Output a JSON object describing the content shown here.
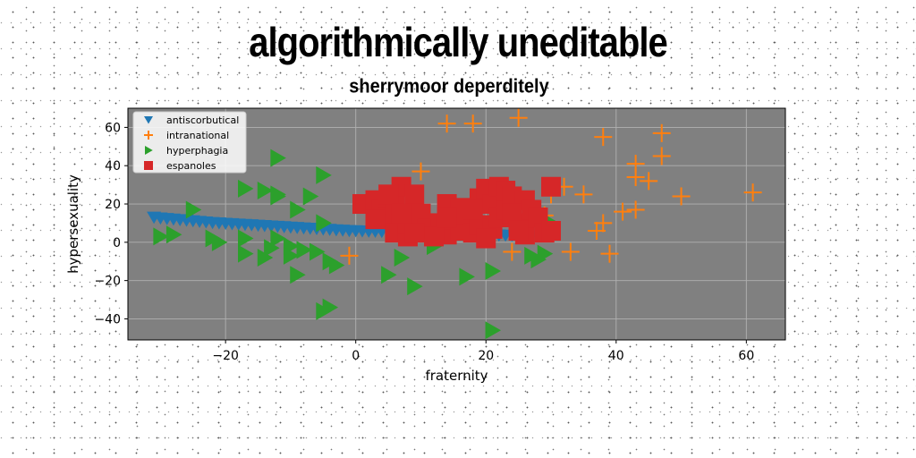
{
  "chart_data": {
    "type": "scatter",
    "title": "algorithmically uneditable",
    "subtitle": "sherrymoor deperditely",
    "xlabel": "fraternity",
    "ylabel": "hypersexuality",
    "xlim": [
      -35,
      66
    ],
    "ylim": [
      -51,
      70
    ],
    "xticks": [
      -20,
      0,
      20,
      40,
      60
    ],
    "yticks": [
      -40,
      -20,
      0,
      20,
      40,
      60
    ],
    "xtick_labels": [
      "−20",
      "0",
      "20",
      "40",
      "60"
    ],
    "ytick_labels": [
      "−40",
      "−20",
      "0",
      "20",
      "40",
      "60"
    ],
    "grid": true,
    "legend_position": "top-left",
    "background": "#808080",
    "series": [
      {
        "name": "antiscorbutical",
        "marker": "triangle-down",
        "color": "#1f77b4",
        "points": [
          [
            -31,
            13
          ],
          [
            -30,
            12.6
          ],
          [
            -29,
            12.3
          ],
          [
            -28,
            12
          ],
          [
            -27,
            11.7
          ],
          [
            -26,
            11.4
          ],
          [
            -25,
            11.1
          ],
          [
            -24,
            10.8
          ],
          [
            -23,
            10.5
          ],
          [
            -22,
            10.2
          ],
          [
            -21,
            10
          ],
          [
            -20,
            9.8
          ],
          [
            -19,
            9.6
          ],
          [
            -18,
            9.4
          ],
          [
            -17,
            9.2
          ],
          [
            -16,
            9
          ],
          [
            -15,
            8.8
          ],
          [
            -14,
            8.6
          ],
          [
            -13,
            8.4
          ],
          [
            -12,
            8.2
          ],
          [
            -11,
            8
          ],
          [
            -10,
            7.8
          ],
          [
            -9,
            7.6
          ],
          [
            -8,
            7.4
          ],
          [
            -7,
            7.2
          ],
          [
            -6,
            7
          ],
          [
            -5,
            6.8
          ],
          [
            -4,
            6.6
          ],
          [
            -3,
            6.4
          ],
          [
            -2,
            6.2
          ],
          [
            -1,
            6
          ],
          [
            0,
            5.9
          ],
          [
            1,
            5.8
          ],
          [
            2,
            5.7
          ],
          [
            3,
            5.6
          ],
          [
            4,
            5.5
          ],
          [
            5,
            5.4
          ],
          [
            6,
            5.3
          ],
          [
            7,
            5.2
          ],
          [
            8,
            5.1
          ],
          [
            9,
            5
          ],
          [
            10,
            4.9
          ],
          [
            11,
            4.8
          ],
          [
            12,
            4.7
          ],
          [
            13,
            4.6
          ],
          [
            14,
            4.5
          ],
          [
            15,
            4.4
          ],
          [
            16,
            4.3
          ],
          [
            17,
            4.2
          ],
          [
            18,
            4.1
          ],
          [
            19,
            4
          ],
          [
            20,
            3.9
          ],
          [
            21,
            3.8
          ],
          [
            22,
            3.7
          ],
          [
            23,
            3.6
          ],
          [
            24,
            3.5
          ],
          [
            25,
            3.4
          ],
          [
            26,
            3.3
          ],
          [
            27,
            3.2
          ],
          [
            28,
            3.1
          ]
        ]
      },
      {
        "name": "intranational",
        "marker": "plus",
        "color": "#ff7f0e",
        "points": [
          [
            14,
            62
          ],
          [
            18,
            62
          ],
          [
            25,
            65
          ],
          [
            38,
            55
          ],
          [
            47,
            57
          ],
          [
            43,
            41
          ],
          [
            47,
            45
          ],
          [
            43,
            34
          ],
          [
            45,
            32
          ],
          [
            32,
            29
          ],
          [
            35,
            25
          ],
          [
            50,
            24
          ],
          [
            61,
            26
          ],
          [
            10,
            37
          ],
          [
            41,
            16
          ],
          [
            43,
            17
          ],
          [
            38,
            10
          ],
          [
            37,
            6
          ],
          [
            39,
            -6
          ],
          [
            33,
            -5
          ],
          [
            24,
            -5
          ],
          [
            -1,
            -7
          ],
          [
            30,
            25
          ],
          [
            29,
            14
          ]
        ]
      },
      {
        "name": "hyperphagia",
        "marker": "triangle-right",
        "color": "#2ca02c",
        "points": [
          [
            -12,
            44
          ],
          [
            -5,
            35
          ],
          [
            -17,
            28
          ],
          [
            -14,
            27
          ],
          [
            -12,
            25
          ],
          [
            -7,
            24
          ],
          [
            -12,
            24
          ],
          [
            -25,
            17
          ],
          [
            -9,
            17
          ],
          [
            -5,
            10
          ],
          [
            -28,
            4
          ],
          [
            -30,
            3
          ],
          [
            -21,
            0
          ],
          [
            -17,
            2
          ],
          [
            -12,
            2
          ],
          [
            -10,
            -2
          ],
          [
            -8,
            -4
          ],
          [
            -13,
            -3
          ],
          [
            -17,
            -6
          ],
          [
            -14,
            -8
          ],
          [
            -10,
            -7
          ],
          [
            -4,
            -10
          ],
          [
            -3,
            -12
          ],
          [
            -9,
            -17
          ],
          [
            -5,
            -36
          ],
          [
            -4,
            -34
          ],
          [
            5,
            -17
          ],
          [
            7,
            -8
          ],
          [
            9,
            -23
          ],
          [
            12,
            -2
          ],
          [
            17,
            -18
          ],
          [
            21,
            -15
          ],
          [
            27,
            -7
          ],
          [
            28,
            -9
          ],
          [
            29,
            -6
          ],
          [
            21,
            -46
          ],
          [
            30,
            10
          ],
          [
            -22,
            2
          ],
          [
            -6,
            -5
          ]
        ]
      },
      {
        "name": "espanoles",
        "marker": "square",
        "color": "#d62728",
        "points": [
          [
            1,
            20
          ],
          [
            3,
            22
          ],
          [
            4,
            17
          ],
          [
            5,
            13
          ],
          [
            6,
            20
          ],
          [
            7,
            29
          ],
          [
            6,
            5
          ],
          [
            8,
            3
          ],
          [
            8,
            10
          ],
          [
            9,
            25
          ],
          [
            10,
            15
          ],
          [
            11,
            7
          ],
          [
            13,
            10
          ],
          [
            14,
            20
          ],
          [
            14,
            4
          ],
          [
            15,
            12
          ],
          [
            16,
            6
          ],
          [
            17,
            14
          ],
          [
            18,
            5
          ],
          [
            19,
            9
          ],
          [
            19,
            23
          ],
          [
            20,
            28
          ],
          [
            21,
            20
          ],
          [
            21,
            7
          ],
          [
            22,
            13
          ],
          [
            22,
            29
          ],
          [
            23,
            17
          ],
          [
            23,
            27
          ],
          [
            24,
            24
          ],
          [
            25,
            10
          ],
          [
            26,
            22
          ],
          [
            26,
            4
          ],
          [
            27,
            17
          ],
          [
            28,
            13
          ],
          [
            29,
            5
          ],
          [
            30,
            6
          ],
          [
            30,
            29
          ],
          [
            20,
            2
          ],
          [
            12,
            3
          ],
          [
            3,
            12
          ],
          [
            16,
            18
          ],
          [
            24,
            15
          ],
          [
            5,
            25
          ],
          [
            9,
            5
          ],
          [
            18,
            17
          ],
          [
            25,
            6
          ],
          [
            7,
            15
          ],
          [
            14,
            13
          ]
        ]
      }
    ]
  }
}
